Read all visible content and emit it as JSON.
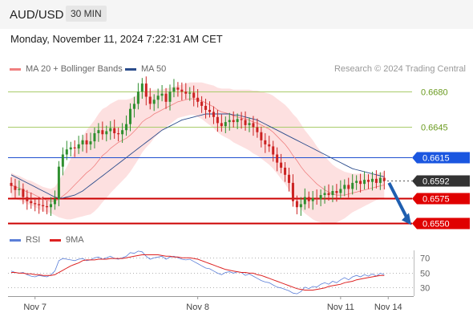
{
  "header": {
    "symbol": "AUD/USD",
    "timeframe": "30 MIN"
  },
  "datetime": "Monday, November 11, 2024 7:22:31 AM CET",
  "legend": {
    "ma20": {
      "label": "MA 20 + Bollinger Bands",
      "color": "#f08080"
    },
    "ma50": {
      "label": "MA 50",
      "color": "#2b4c8c"
    }
  },
  "credit": "Research © 2024 Trading Central",
  "rsi_legend": {
    "rsi": {
      "label": "RSI",
      "color": "#5b7fd8"
    },
    "ma9": {
      "label": "9MA",
      "color": "#dd2222"
    }
  },
  "chart_data": {
    "type": "candlestick",
    "price_range": [
      0.6544,
      0.6696
    ],
    "levels": [
      {
        "value": 0.668,
        "label": "0.6680",
        "style": "green-line"
      },
      {
        "value": 0.6645,
        "label": "0.6645",
        "style": "green-line"
      },
      {
        "value": 0.6615,
        "label": "0.6615",
        "style": "blue-tag"
      },
      {
        "value": 0.6592,
        "label": "0.6592",
        "style": "current-price"
      },
      {
        "value": 0.6575,
        "label": "0.6575",
        "style": "red-tag"
      },
      {
        "value": 0.655,
        "label": "0.6550",
        "style": "red-tag"
      }
    ],
    "colors": {
      "up": "#2f8f2f",
      "down": "#cc2222",
      "band": "#fde0e0",
      "green_line": "#a9cc6a",
      "blue_line": "#2050d0",
      "red_line": "#cc0000",
      "current_tag": "#333333",
      "blue_tag": "#1a56e0",
      "red_tag": "#e00000",
      "arrow": "#1f5fb0"
    },
    "x_labels": [
      "Nov 7",
      "Nov 8",
      "Nov 11",
      "Nov 14"
    ],
    "x_label_index": [
      6,
      47,
      83,
      95
    ],
    "forecast_arrow": {
      "from": 0.659,
      "to": 0.655
    },
    "close": [
      0.6587,
      0.6583,
      0.6584,
      0.6576,
      0.6572,
      0.657,
      0.6569,
      0.6568,
      0.6567,
      0.6566,
      0.6569,
      0.6574,
      0.6606,
      0.6618,
      0.6623,
      0.6625,
      0.6624,
      0.6628,
      0.6632,
      0.6628,
      0.6631,
      0.6639,
      0.6642,
      0.6638,
      0.6641,
      0.6644,
      0.6639,
      0.6638,
      0.6642,
      0.6648,
      0.6663,
      0.6668,
      0.668,
      0.6688,
      0.6675,
      0.6668,
      0.6672,
      0.6676,
      0.6678,
      0.667,
      0.668,
      0.6684,
      0.6682,
      0.668,
      0.6678,
      0.6679,
      0.6674,
      0.667,
      0.6666,
      0.6662,
      0.666,
      0.6655,
      0.6649,
      0.6646,
      0.665,
      0.6652,
      0.665,
      0.6653,
      0.6652,
      0.6647,
      0.6649,
      0.6645,
      0.664,
      0.6632,
      0.6628,
      0.6626,
      0.6618,
      0.661,
      0.6605,
      0.6598,
      0.659,
      0.6572,
      0.6566,
      0.6569,
      0.6576,
      0.6572,
      0.6575,
      0.6574,
      0.6578,
      0.658,
      0.6578,
      0.6582,
      0.658,
      0.6584,
      0.6588,
      0.6584,
      0.659,
      0.6592,
      0.6589,
      0.6593,
      0.6591,
      0.6594,
      0.659,
      0.6595,
      0.6592
    ],
    "ma20": [
      0.6588,
      0.6586,
      0.6585,
      0.6583,
      0.6581,
      0.658,
      0.6578,
      0.6576,
      0.6574,
      0.6573,
      0.6572,
      0.6572,
      0.6574,
      0.6577,
      0.658,
      0.6584,
      0.6588,
      0.6592,
      0.6596,
      0.66,
      0.6603,
      0.6607,
      0.6612,
      0.6617,
      0.662,
      0.6624,
      0.6627,
      0.663,
      0.6632,
      0.6634,
      0.6637,
      0.6641,
      0.6645,
      0.665,
      0.6653,
      0.6655,
      0.6658,
      0.666,
      0.6662,
      0.6664,
      0.6666,
      0.6668,
      0.667,
      0.6671,
      0.6672,
      0.6673,
      0.6673,
      0.6672,
      0.6671,
      0.6669,
      0.6667,
      0.6665,
      0.6662,
      0.666,
      0.6659,
      0.6658,
      0.6656,
      0.6655,
      0.6654,
      0.6653,
      0.6652,
      0.665,
      0.6649,
      0.6647,
      0.6645,
      0.6643,
      0.664,
      0.6636,
      0.6632,
      0.6628,
      0.6623,
      0.6617,
      0.6612,
      0.6606,
      0.6601,
      0.6597,
      0.6593,
      0.6589,
      0.6586,
      0.6583,
      0.6581,
      0.6579,
      0.6578,
      0.6578,
      0.6578,
      0.6579,
      0.658,
      0.6581,
      0.6582,
      0.6583,
      0.6584,
      0.6585,
      0.6586,
      0.6587,
      0.6588
    ],
    "ma50": [
      0.6598,
      0.6596,
      0.6594,
      0.6592,
      0.659,
      0.6588,
      0.6586,
      0.6584,
      0.6582,
      0.658,
      0.6578,
      0.6576,
      0.6575,
      0.6575,
      0.6576,
      0.6577,
      0.6578,
      0.658,
      0.6582,
      0.6585,
      0.6588,
      0.6591,
      0.6594,
      0.6597,
      0.66,
      0.6603,
      0.6606,
      0.6609,
      0.6612,
      0.6615,
      0.6618,
      0.6621,
      0.6624,
      0.6627,
      0.663,
      0.6633,
      0.6636,
      0.6639,
      0.6642,
      0.6644,
      0.6646,
      0.6648,
      0.665,
      0.6652,
      0.6653,
      0.6654,
      0.6655,
      0.6656,
      0.6657,
      0.6658,
      0.6658,
      0.6658,
      0.6658,
      0.6658,
      0.6658,
      0.6658,
      0.6657,
      0.6657,
      0.6656,
      0.6655,
      0.6654,
      0.6653,
      0.6652,
      0.665,
      0.6648,
      0.6646,
      0.6644,
      0.6642,
      0.664,
      0.6638,
      0.6636,
      0.6634,
      0.6632,
      0.663,
      0.6628,
      0.6626,
      0.6624,
      0.6622,
      0.662,
      0.6618,
      0.6616,
      0.6614,
      0.6612,
      0.661,
      0.6608,
      0.6606,
      0.6604,
      0.6603,
      0.6602,
      0.6601,
      0.66,
      0.6599,
      0.6598,
      0.6597,
      0.6596
    ],
    "band_width": [
      0.0012,
      0.0012,
      0.0012,
      0.0012,
      0.0012,
      0.0012,
      0.0012,
      0.0012,
      0.0012,
      0.0012,
      0.0012,
      0.0014,
      0.0018,
      0.0022,
      0.0026,
      0.003,
      0.0033,
      0.0036,
      0.0039,
      0.0042,
      0.0044,
      0.0045,
      0.0046,
      0.0046,
      0.0045,
      0.0044,
      0.0043,
      0.0042,
      0.004,
      0.0038,
      0.0036,
      0.0034,
      0.0032,
      0.003,
      0.0028,
      0.0026,
      0.0024,
      0.0022,
      0.002,
      0.0019,
      0.0018,
      0.0017,
      0.0016,
      0.0016,
      0.0016,
      0.0016,
      0.0016,
      0.0017,
      0.0018,
      0.0019,
      0.002,
      0.0021,
      0.0022,
      0.0023,
      0.0024,
      0.0025,
      0.0026,
      0.0027,
      0.0028,
      0.0029,
      0.003,
      0.0031,
      0.0032,
      0.0033,
      0.0034,
      0.0035,
      0.0036,
      0.0037,
      0.0038,
      0.0039,
      0.004,
      0.0041,
      0.0042,
      0.0042,
      0.0041,
      0.004,
      0.0039,
      0.0037,
      0.0035,
      0.0033,
      0.0031,
      0.0029,
      0.0027,
      0.0025,
      0.0023,
      0.0021,
      0.0019,
      0.0018,
      0.0017,
      0.0016,
      0.0015,
      0.0014,
      0.0013,
      0.0013,
      0.0013
    ],
    "rsi_axis": {
      "range": [
        20,
        80
      ],
      "ticks": [
        70,
        50,
        30
      ]
    },
    "rsi": [
      52,
      50,
      49,
      50,
      47,
      45,
      44,
      46,
      45,
      44,
      47,
      52,
      66,
      69,
      68,
      67,
      66,
      68,
      69,
      66,
      67,
      70,
      71,
      68,
      70,
      72,
      69,
      68,
      70,
      72,
      77,
      76,
      79,
      78,
      72,
      68,
      70,
      71,
      72,
      68,
      71,
      72,
      70,
      68,
      67,
      68,
      65,
      62,
      59,
      56,
      55,
      52,
      49,
      47,
      50,
      51,
      49,
      51,
      50,
      46,
      48,
      45,
      42,
      39,
      37,
      36,
      33,
      30,
      29,
      27,
      25,
      22,
      21,
      24,
      30,
      28,
      31,
      30,
      34,
      36,
      34,
      38,
      36,
      40,
      43,
      40,
      44,
      46,
      44,
      47,
      45,
      48,
      45,
      49,
      47
    ],
    "rsi_ma9": [
      50,
      50,
      49,
      49,
      48,
      48,
      47,
      47,
      46,
      46,
      46,
      47,
      50,
      53,
      56,
      59,
      61,
      63,
      66,
      67,
      67,
      67,
      68,
      68,
      68,
      69,
      69,
      69,
      69,
      70,
      71,
      72,
      73,
      74,
      74,
      74,
      74,
      74,
      73,
      72,
      72,
      71,
      71,
      70,
      70,
      70,
      69,
      68,
      66,
      64,
      62,
      60,
      58,
      56,
      54,
      53,
      52,
      51,
      50,
      50,
      49,
      49,
      47,
      46,
      44,
      42,
      40,
      38,
      36,
      34,
      32,
      30,
      28,
      27,
      26,
      26,
      26,
      27,
      28,
      29,
      31,
      32,
      33,
      34,
      36,
      37,
      38,
      40,
      41,
      42,
      43,
      44,
      45,
      46,
      46
    ]
  }
}
